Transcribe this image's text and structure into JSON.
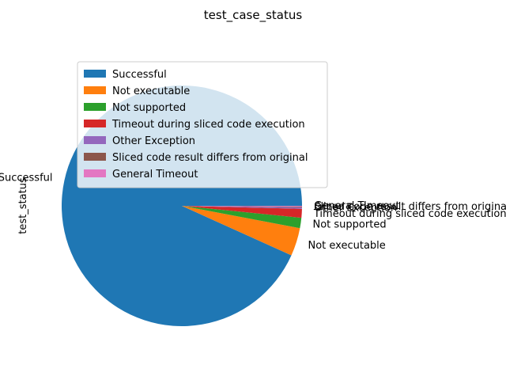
{
  "chart_data": {
    "type": "pie",
    "title": "test_case_status",
    "ylabel": "test_status",
    "legend_position": "upper-left",
    "slices": [
      {
        "label": "Successful",
        "value": 94.0,
        "color": "#1f77b4"
      },
      {
        "label": "Not executable",
        "value": 3.8,
        "color": "#ff7f0e"
      },
      {
        "label": "Not supported",
        "value": 1.4,
        "color": "#2ca02c"
      },
      {
        "label": "Timeout during sliced code execution",
        "value": 1.2,
        "color": "#d62728"
      },
      {
        "label": "Other Exception",
        "value": 0.2,
        "color": "#9467bd"
      },
      {
        "label": "Sliced code result differs from original",
        "value": 0.1,
        "color": "#8c564b"
      },
      {
        "label": "General Timeout",
        "value": 0.1,
        "color": "#e377c2"
      }
    ]
  }
}
